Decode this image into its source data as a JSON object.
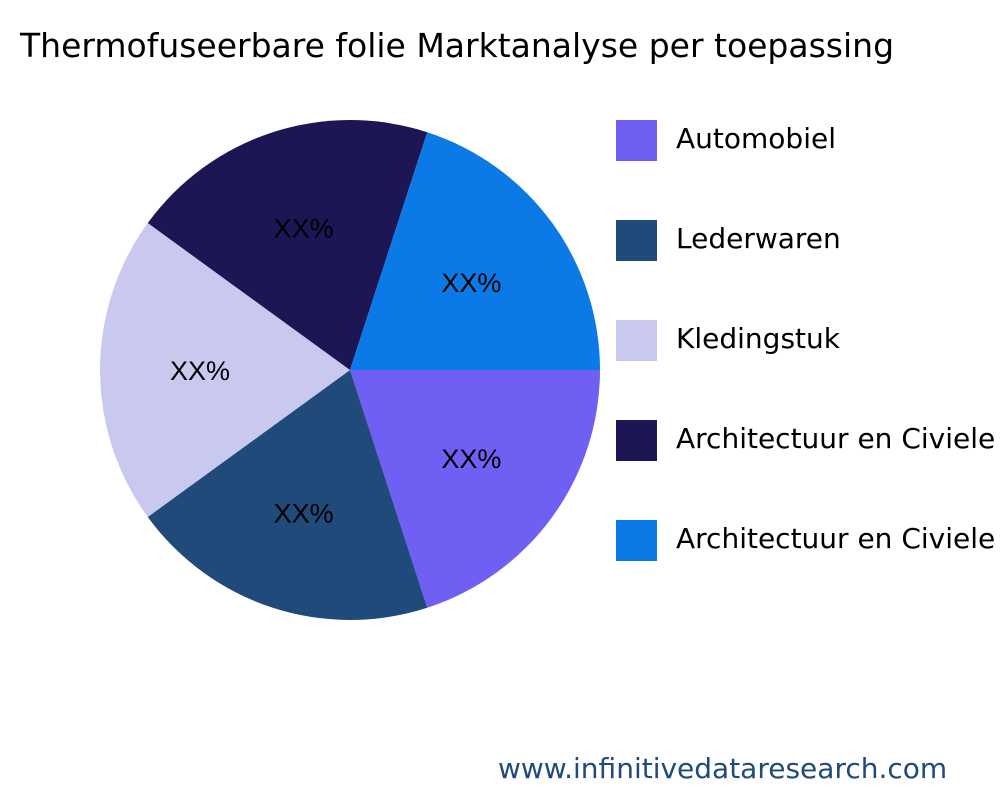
{
  "chart_data": {
    "type": "pie",
    "title": "Thermofuseerbare folie Marktanalyse per toepassing",
    "categories": [
      "Automobiel",
      "Lederwaren",
      "Kledingstuk",
      "Architectuur en Civiele",
      "Architectuur en Civiele"
    ],
    "values": [
      20,
      20,
      20,
      20,
      20
    ],
    "data_labels": [
      "XX%",
      "XX%",
      "XX%",
      "XX%",
      "XX%"
    ],
    "colors": [
      "#6f5ff3",
      "#1f4a7a",
      "#c9c9f0",
      "#1c1655",
      "#0b7ae6"
    ],
    "legend_position": "right"
  },
  "footer": "www.infinitivedataresearch.com"
}
